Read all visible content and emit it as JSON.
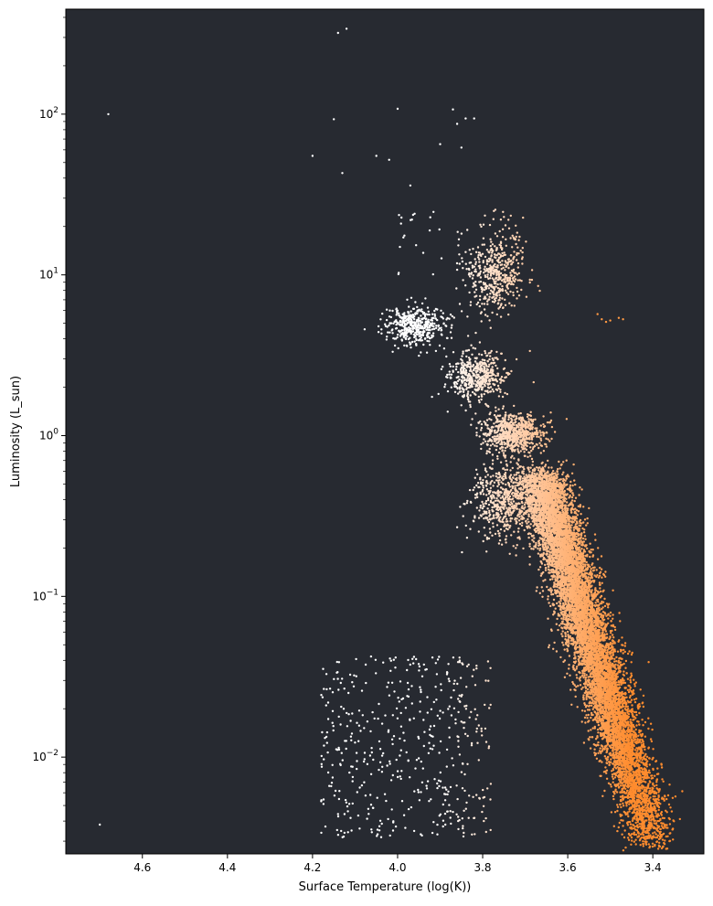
{
  "chart_data": {
    "type": "scatter",
    "title": "",
    "xlabel": "Surface Temperature (log(K))",
    "ylabel": "Luminosity (L_sun)",
    "xlim": [
      4.78,
      3.28
    ],
    "x_inverted": true,
    "ylim": [
      0.0025,
      450
    ],
    "y_scale": "log",
    "grid": false,
    "background_color": "#272a31",
    "x_ticks": [
      {
        "value": 4.6,
        "label": "4.6"
      },
      {
        "value": 4.4,
        "label": "4.4"
      },
      {
        "value": 4.2,
        "label": "4.2"
      },
      {
        "value": 4.0,
        "label": "4.0"
      },
      {
        "value": 3.8,
        "label": "3.8"
      },
      {
        "value": 3.6,
        "label": "3.6"
      },
      {
        "value": 3.4,
        "label": "3.4"
      }
    ],
    "y_ticks": [
      {
        "value": 0.01,
        "base": "10",
        "exp": "−2"
      },
      {
        "value": 0.1,
        "base": "10",
        "exp": "−1"
      },
      {
        "value": 1,
        "base": "10",
        "exp": "0"
      },
      {
        "value": 10,
        "base": "10",
        "exp": "1"
      },
      {
        "value": 100,
        "base": "10",
        "exp": "2"
      }
    ],
    "color_scale": {
      "hot": "#ffffff",
      "mid": "#ffcda8",
      "cool": "#ff8c2e"
    },
    "point_radius": 1.2,
    "series": [
      {
        "points": [
          [
            4.68,
            100
          ],
          [
            4.7,
            0.0038
          ],
          [
            4.14,
            320
          ],
          [
            4.12,
            340
          ],
          [
            4.15,
            93
          ],
          [
            4.0,
            108
          ],
          [
            3.87,
            107
          ],
          [
            3.86,
            87
          ],
          [
            3.84,
            94
          ],
          [
            3.82,
            94
          ],
          [
            4.2,
            55
          ],
          [
            4.05,
            55
          ],
          [
            4.02,
            52
          ],
          [
            4.13,
            43
          ],
          [
            3.9,
            65
          ],
          [
            3.85,
            62
          ],
          [
            3.97,
            36
          ],
          [
            3.96,
            24
          ]
        ],
        "color": "#ffffff"
      },
      {
        "points": [
          [
            3.53,
            5.7
          ],
          [
            3.52,
            5.3
          ],
          [
            3.51,
            5.1
          ],
          [
            3.47,
            5.3
          ],
          [
            3.48,
            5.4
          ],
          [
            3.5,
            5.2
          ]
        ],
        "color": "#ff9a44"
      }
    ]
  }
}
